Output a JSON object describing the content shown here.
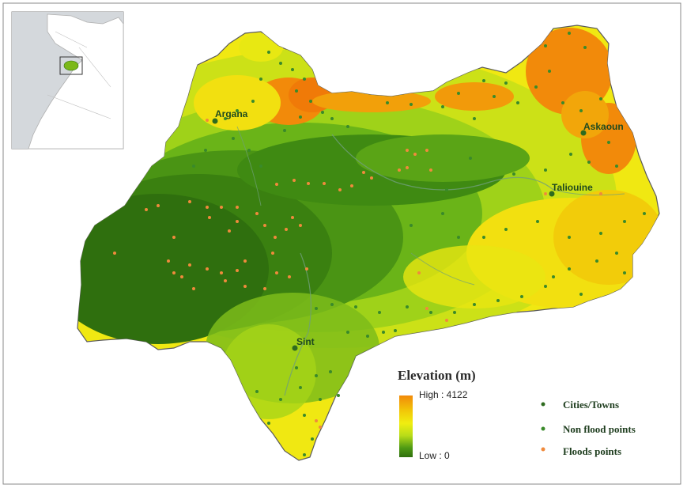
{
  "legend": {
    "title": "Elevation (m)",
    "high_label": "High : 4122",
    "low_label": "Low : 0",
    "ramp_colors": [
      "#f28a0a",
      "#f2d008",
      "#f0ee10",
      "#b8dc18",
      "#6fb81a",
      "#3f8a12",
      "#2f6f0e"
    ],
    "items": [
      {
        "label": "Cities/Towns",
        "color": "#2e6b1f"
      },
      {
        "label": "Non flood points",
        "color": "#3a8a2a"
      },
      {
        "label": "Floods points",
        "color": "#f08a3c"
      }
    ]
  },
  "cities": [
    {
      "name": "Argana"
    },
    {
      "name": "Askaoun"
    },
    {
      "name": "Taliouine"
    },
    {
      "name": "Sint"
    }
  ],
  "colors": {
    "border": "#5a5a5a",
    "background": "#ffffff",
    "frame": "#888888"
  }
}
